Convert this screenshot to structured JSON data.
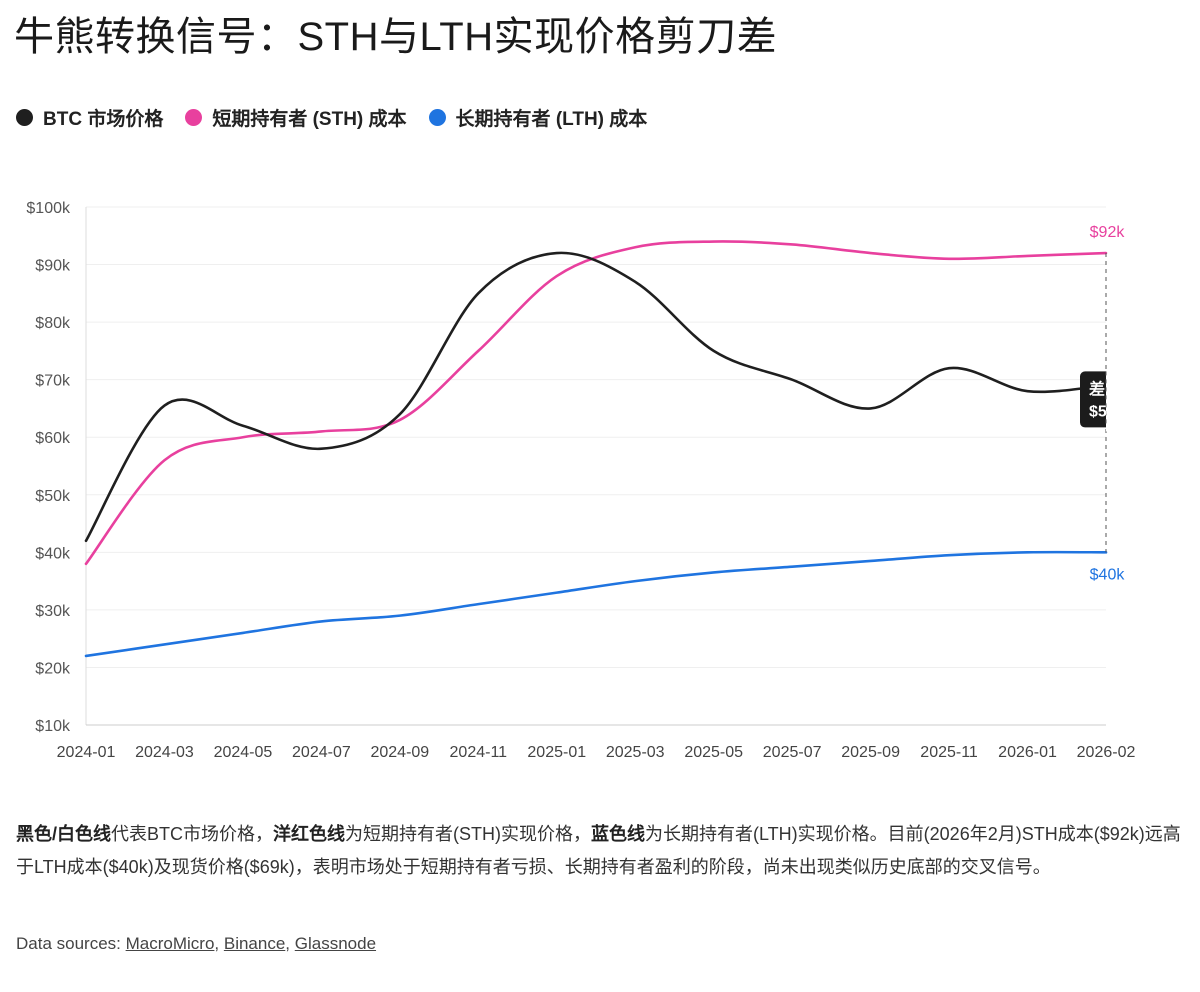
{
  "title": "牛熊转换信号：STH与LTH实现价格剪刀差",
  "legend": [
    {
      "label": "BTC 市场价格",
      "color": "#1f1f1f"
    },
    {
      "label": "短期持有者 (STH) 成本",
      "color": "#e8409e"
    },
    {
      "label": "长期持有者 (LTH) 成本",
      "color": "#1f74e0"
    }
  ],
  "chart_data": {
    "type": "line",
    "x": [
      "2024-01",
      "2024-03",
      "2024-05",
      "2024-07",
      "2024-09",
      "2024-11",
      "2025-01",
      "2025-03",
      "2025-05",
      "2025-07",
      "2025-09",
      "2025-11",
      "2026-01",
      "2026-02"
    ],
    "ylim": [
      10000,
      100000
    ],
    "yticks": [
      "$10k",
      "$20k",
      "$30k",
      "$40k",
      "$50k",
      "$60k",
      "$70k",
      "$80k",
      "$90k",
      "$100k"
    ],
    "grid": true,
    "series": [
      {
        "name": "BTC 市场价格",
        "color": "#1f1f1f",
        "values": [
          42000,
          65500,
          62000,
          58000,
          64000,
          85000,
          92000,
          87000,
          75000,
          70000,
          65000,
          72000,
          68000,
          69000
        ]
      },
      {
        "name": "短期持有者 (STH) 成本",
        "color": "#e8409e",
        "values": [
          38000,
          56000,
          60000,
          61000,
          63000,
          75000,
          88000,
          93000,
          94000,
          93500,
          92000,
          91000,
          91500,
          92000
        ]
      },
      {
        "name": "长期持有者 (LTH) 成本",
        "color": "#1f74e0",
        "values": [
          22000,
          24000,
          26000,
          28000,
          29000,
          31000,
          33000,
          35000,
          36500,
          37500,
          38500,
          39500,
          40000,
          40000
        ]
      }
    ],
    "annotations": {
      "sth_end_label": "$92k",
      "lth_end_label": "$40k",
      "gap_tooltip_line1": "差",
      "gap_tooltip_line2": "$5"
    }
  },
  "description": {
    "b1": "黑色/白色线",
    "t1": "代表BTC市场价格，",
    "b2": "洋红色线",
    "t2": "为短期持有者(STH)实现价格，",
    "b3": "蓝色线",
    "t3": "为长期持有者(LTH)实现价格。目前(2026年2月)STH成本($92k)远高于LTH成本($40k)及现货价格($69k)，表明市场处于短期持有者亏损、长期持有者盈利的阶段，尚未出现类似历史底部的交叉信号。"
  },
  "sources": {
    "prefix": "Data sources: ",
    "links": [
      "MacroMicro",
      "Binance",
      "Glassnode"
    ]
  }
}
